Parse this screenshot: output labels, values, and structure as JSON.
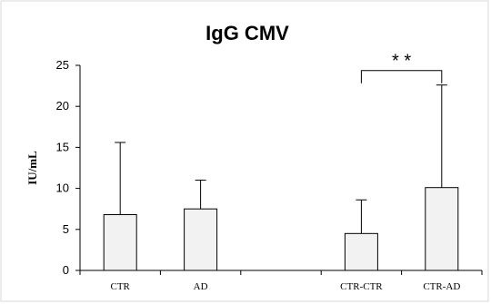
{
  "chart_data": {
    "type": "bar",
    "title": "IgG CMV",
    "ylabel": "IU/mL",
    "xlabel": "",
    "ylim": [
      0,
      25
    ],
    "yticks": [
      "0",
      "5",
      "10",
      "15",
      "20",
      "25"
    ],
    "categories": [
      "CTR",
      "AD",
      "",
      "CTR-CTR",
      "CTR-AD"
    ],
    "values": [
      6.8,
      7.5,
      null,
      4.5,
      10.1
    ],
    "error_upper": [
      15.6,
      11.0,
      null,
      8.6,
      22.6
    ],
    "bar_color": "#f2f2f2",
    "bar_edge_color": "#000000",
    "grid": false,
    "legend": "none",
    "annotations": [
      {
        "text": "* *",
        "from_category": "CTR-CTR",
        "to_category": "CTR-AD",
        "y": 22.6
      }
    ]
  }
}
